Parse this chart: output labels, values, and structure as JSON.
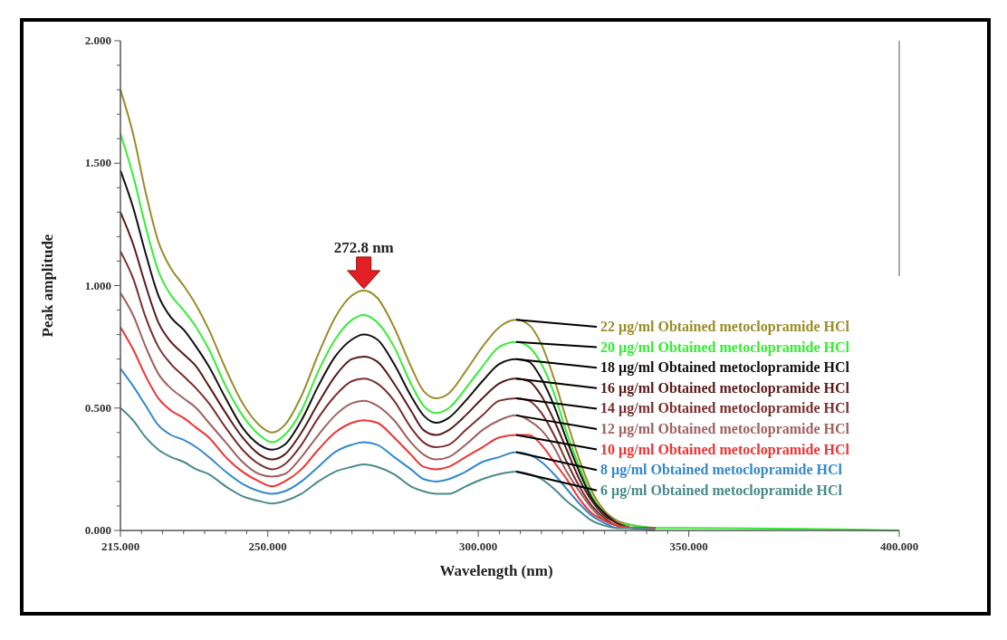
{
  "chart_data": {
    "type": "line",
    "xlabel": "Wavelength (nm)",
    "ylabel": "Peak amplitude",
    "x": [
      215,
      218,
      221,
      224,
      227,
      230,
      233,
      236,
      240,
      244,
      248,
      251,
      254,
      258,
      262,
      266,
      270,
      272.8,
      276,
      280,
      284,
      287,
      290,
      293,
      297,
      301,
      305,
      309,
      312,
      315,
      318,
      321,
      324,
      327,
      330,
      333,
      337,
      342,
      350,
      400
    ],
    "xlim": [
      215,
      400
    ],
    "ylim": [
      0,
      2
    ],
    "xticks": [
      {
        "value": 215,
        "label": "215.000"
      },
      {
        "value": 220,
        "label": null
      },
      {
        "value": 225,
        "label": null
      },
      {
        "value": 230,
        "label": null
      },
      {
        "value": 235,
        "label": null
      },
      {
        "value": 240,
        "label": null
      },
      {
        "value": 245,
        "label": null
      },
      {
        "value": 250,
        "label": "250.000"
      },
      {
        "value": 255,
        "label": null
      },
      {
        "value": 260,
        "label": null
      },
      {
        "value": 265,
        "label": null
      },
      {
        "value": 270,
        "label": null
      },
      {
        "value": 275,
        "label": null
      },
      {
        "value": 280,
        "label": null
      },
      {
        "value": 285,
        "label": null
      },
      {
        "value": 290,
        "label": null
      },
      {
        "value": 295,
        "label": null
      },
      {
        "value": 300,
        "label": "300.000"
      },
      {
        "value": 305,
        "label": null
      },
      {
        "value": 310,
        "label": null
      },
      {
        "value": 315,
        "label": null
      },
      {
        "value": 320,
        "label": null
      },
      {
        "value": 325,
        "label": null
      },
      {
        "value": 330,
        "label": null
      },
      {
        "value": 335,
        "label": null
      },
      {
        "value": 340,
        "label": null
      },
      {
        "value": 345,
        "label": null
      },
      {
        "value": 350,
        "label": "350.000"
      },
      {
        "value": 400,
        "label": "400.000"
      }
    ],
    "yticks": [
      {
        "value": 0,
        "label": "0.000"
      },
      {
        "value": 0.1,
        "label": null
      },
      {
        "value": 0.2,
        "label": null
      },
      {
        "value": 0.3,
        "label": null
      },
      {
        "value": 0.4,
        "label": null
      },
      {
        "value": 0.5,
        "label": "0.500"
      },
      {
        "value": 0.6,
        "label": null
      },
      {
        "value": 0.7,
        "label": null
      },
      {
        "value": 0.8,
        "label": null
      },
      {
        "value": 0.9,
        "label": null
      },
      {
        "value": 1,
        "label": "1.000"
      },
      {
        "value": 1.1,
        "label": null
      },
      {
        "value": 1.2,
        "label": null
      },
      {
        "value": 1.3,
        "label": null
      },
      {
        "value": 1.4,
        "label": null
      },
      {
        "value": 1.5,
        "label": "1.500"
      },
      {
        "value": 1.6,
        "label": null
      },
      {
        "value": 1.7,
        "label": null
      },
      {
        "value": 1.8,
        "label": null
      },
      {
        "value": 1.9,
        "label": null
      },
      {
        "value": 2,
        "label": "2.000"
      }
    ],
    "annotations": [
      {
        "text": "272.8 nm",
        "x": 272.8,
        "y": 0.98
      }
    ],
    "series": [
      {
        "name": "22 µg/ml Obtained metoclopramide HCl",
        "color": "#9a8c2a",
        "values": [
          1.8,
          1.62,
          1.38,
          1.18,
          1.07,
          1.0,
          0.92,
          0.82,
          0.66,
          0.52,
          0.43,
          0.4,
          0.43,
          0.55,
          0.72,
          0.87,
          0.96,
          0.98,
          0.95,
          0.83,
          0.67,
          0.57,
          0.54,
          0.56,
          0.65,
          0.75,
          0.83,
          0.86,
          0.84,
          0.76,
          0.62,
          0.45,
          0.29,
          0.16,
          0.08,
          0.04,
          0.02,
          0.01,
          null,
          null
        ]
      },
      {
        "name": "20 µg/ml Obtained metoclopramide HCl",
        "color": "#33ee33",
        "values": [
          1.62,
          1.45,
          1.24,
          1.06,
          0.96,
          0.9,
          0.83,
          0.74,
          0.59,
          0.47,
          0.39,
          0.36,
          0.39,
          0.49,
          0.65,
          0.78,
          0.86,
          0.88,
          0.85,
          0.75,
          0.6,
          0.51,
          0.48,
          0.5,
          0.58,
          0.67,
          0.75,
          0.77,
          0.75,
          0.68,
          0.56,
          0.4,
          0.26,
          0.14,
          0.07,
          0.03,
          0.02,
          0.01,
          0.01,
          0.0
        ]
      },
      {
        "name": "18 µg/ml Obtained metoclopramide HCl",
        "color": "#111111",
        "values": [
          1.47,
          1.32,
          1.13,
          0.96,
          0.87,
          0.82,
          0.75,
          0.67,
          0.54,
          0.42,
          0.35,
          0.33,
          0.35,
          0.45,
          0.59,
          0.71,
          0.78,
          0.8,
          0.78,
          0.68,
          0.55,
          0.47,
          0.44,
          0.46,
          0.53,
          0.61,
          0.68,
          0.7,
          0.69,
          0.62,
          0.51,
          0.37,
          0.24,
          0.13,
          0.07,
          0.03,
          0.01,
          0.01,
          null,
          null
        ]
      },
      {
        "name": "16 µg/ml Obtained metoclopramide HCl",
        "color": "#5a1a1a",
        "values": [
          1.3,
          1.17,
          1.0,
          0.85,
          0.77,
          0.72,
          0.67,
          0.59,
          0.48,
          0.38,
          0.31,
          0.29,
          0.31,
          0.4,
          0.52,
          0.63,
          0.7,
          0.71,
          0.69,
          0.6,
          0.49,
          0.41,
          0.39,
          0.41,
          0.47,
          0.54,
          0.6,
          0.62,
          0.61,
          0.55,
          0.45,
          0.33,
          0.21,
          0.12,
          0.06,
          0.03,
          0.01,
          0.01,
          null,
          null
        ]
      },
      {
        "name": "14 µg/ml Obtained metoclopramide HCl",
        "color": "#7a2e2e",
        "values": [
          1.14,
          1.03,
          0.87,
          0.75,
          0.68,
          0.63,
          0.58,
          0.52,
          0.42,
          0.33,
          0.27,
          0.25,
          0.27,
          0.35,
          0.46,
          0.55,
          0.61,
          0.62,
          0.6,
          0.53,
          0.42,
          0.36,
          0.34,
          0.35,
          0.41,
          0.47,
          0.53,
          0.54,
          0.53,
          0.48,
          0.39,
          0.28,
          0.18,
          0.1,
          0.05,
          0.02,
          0.01,
          0.01,
          null,
          null
        ]
      },
      {
        "name": "12 µg/ml Obtained metoclopramide HCl",
        "color": "#a06060",
        "values": [
          0.97,
          0.88,
          0.75,
          0.64,
          0.58,
          0.54,
          0.5,
          0.44,
          0.36,
          0.28,
          0.23,
          0.22,
          0.23,
          0.3,
          0.39,
          0.47,
          0.52,
          0.53,
          0.51,
          0.45,
          0.36,
          0.31,
          0.29,
          0.3,
          0.35,
          0.41,
          0.45,
          0.47,
          0.45,
          0.41,
          0.34,
          0.24,
          0.16,
          0.09,
          0.04,
          0.02,
          0.01,
          0.01,
          null,
          null
        ]
      },
      {
        "name": "10 µg/ml Obtained metoclopramide HCl",
        "color": "#ee3333",
        "values": [
          0.83,
          0.74,
          0.63,
          0.54,
          0.49,
          0.46,
          0.42,
          0.38,
          0.3,
          0.24,
          0.2,
          0.18,
          0.2,
          0.25,
          0.33,
          0.4,
          0.44,
          0.45,
          0.44,
          0.38,
          0.31,
          0.26,
          0.25,
          0.26,
          0.3,
          0.34,
          0.38,
          0.39,
          0.39,
          0.35,
          0.28,
          0.21,
          0.13,
          0.07,
          0.04,
          0.02,
          0.01,
          0.0,
          null,
          null
        ]
      },
      {
        "name": "8 µg/ml Obtained metoclopramide HCl",
        "color": "#3388cc",
        "values": [
          0.66,
          0.59,
          0.51,
          0.43,
          0.39,
          0.37,
          0.34,
          0.3,
          0.24,
          0.19,
          0.16,
          0.15,
          0.16,
          0.2,
          0.26,
          0.32,
          0.35,
          0.36,
          0.35,
          0.3,
          0.25,
          0.21,
          0.2,
          0.21,
          0.24,
          0.28,
          0.3,
          0.32,
          0.31,
          0.28,
          0.23,
          0.17,
          0.11,
          0.06,
          0.03,
          0.01,
          0.01,
          0.0,
          null,
          null
        ]
      },
      {
        "name": "6 µg/ml Obtained metoclopramide HCl",
        "color": "#4a8a8a",
        "values": [
          0.5,
          0.45,
          0.38,
          0.33,
          0.3,
          0.28,
          0.25,
          0.23,
          0.18,
          0.14,
          0.12,
          0.11,
          0.12,
          0.15,
          0.2,
          0.24,
          0.26,
          0.27,
          0.26,
          0.23,
          0.18,
          0.16,
          0.15,
          0.15,
          0.18,
          0.21,
          0.23,
          0.24,
          0.23,
          0.21,
          0.17,
          0.12,
          0.08,
          0.04,
          0.02,
          0.01,
          0.01,
          0.0,
          null,
          null
        ]
      }
    ]
  }
}
